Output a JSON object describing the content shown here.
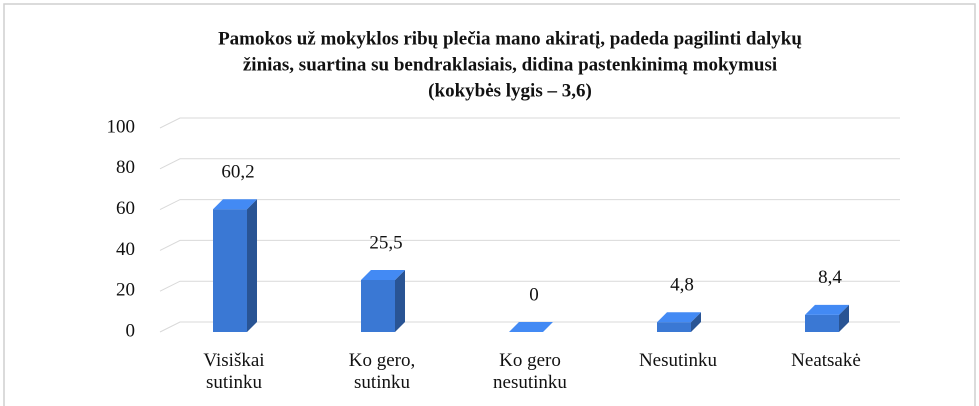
{
  "chart_data": {
    "type": "bar",
    "title": [
      "Pamokos už mokyklos ribų plečia mano akiratį, padeda pagilinti dalykų",
      "žinias, suartina su bendraklasiais, didina pastenkinimą mokymusi",
      "(kokybės lygis – 3,6)"
    ],
    "categories": [
      "Visiškai sutinku",
      "Ko gero, sutinku",
      "Ko gero nesutinku",
      "Nesutinku",
      "Neatsakė"
    ],
    "values": [
      60.2,
      25.5,
      0,
      4.8,
      8.4
    ],
    "value_labels": [
      "60,2",
      "25,5",
      "0",
      "4,8",
      "8,4"
    ],
    "color": "#3a78d4",
    "ylim": [
      0,
      100
    ],
    "yticks": [
      0,
      20,
      40,
      60,
      80,
      100
    ],
    "grid": true
  }
}
